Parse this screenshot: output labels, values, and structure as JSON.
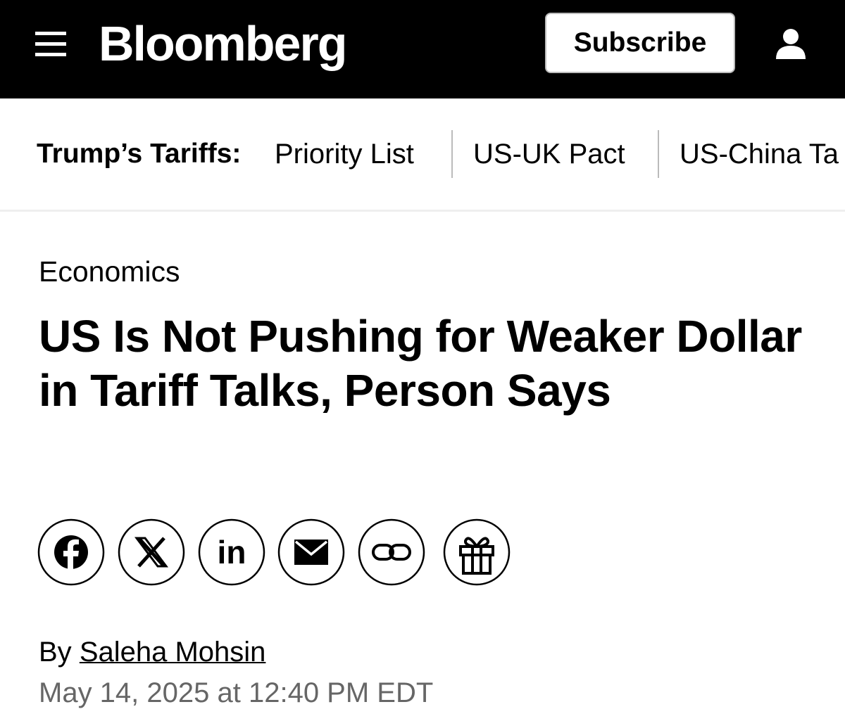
{
  "header": {
    "logo": "Bloomberg",
    "subscribe": "Subscribe"
  },
  "nav": {
    "label": "Trump’s Tariffs:",
    "links": [
      "Priority List",
      "US-UK Pact",
      "US-China Ta"
    ]
  },
  "article": {
    "category": "Economics",
    "headline": "US Is Not Pushing for Weaker Dollar in Tariff Talks, Person Says",
    "byline_prefix": "By",
    "author": "Saleha Mohsin",
    "date": "May 14, 2025 at 12:40 PM EDT"
  }
}
